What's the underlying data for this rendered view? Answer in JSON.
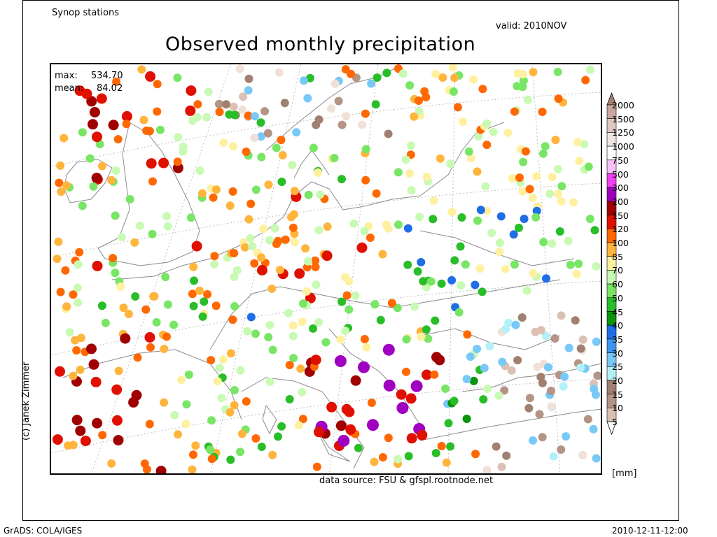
{
  "header": {
    "source_label": "Synop stations",
    "valid_label": "valid: 2010NOV",
    "title": "Observed monthly precipitation"
  },
  "stats": {
    "max_label": "max:",
    "max_value": "534.70",
    "mean_label": "mean:",
    "mean_value": "84.02"
  },
  "credit": "(c) Janek Zimmer",
  "data_source": "data source: FSU & gfspl.rootnode.net",
  "footer": {
    "left": "GrADS: COLA/IGES",
    "right": "2010-12-11-12:00"
  },
  "legend": {
    "unit": "[mm]",
    "levels": [
      {
        "label": "2000",
        "color": "#c8a89c"
      },
      {
        "label": "1500",
        "color": "#e0c8c0"
      },
      {
        "label": "1250",
        "color": "#f2e6e2"
      },
      {
        "label": "1000",
        "color": "#ffffff"
      },
      {
        "label": "750",
        "color": "#f8c0f8"
      },
      {
        "label": "500",
        "color": "#f040f0"
      },
      {
        "label": "300",
        "color": "#a000c0"
      },
      {
        "label": "200",
        "color": "#a00000"
      },
      {
        "label": "150",
        "color": "#e01000"
      },
      {
        "label": "120",
        "color": "#ff6800"
      },
      {
        "label": "100",
        "color": "#ffb43c"
      },
      {
        "label": "85",
        "color": "#fff0a0"
      },
      {
        "label": "70",
        "color": "#c8fab4"
      },
      {
        "label": "60",
        "color": "#78e664"
      },
      {
        "label": "50",
        "color": "#28be28"
      },
      {
        "label": "45",
        "color": "#089608"
      },
      {
        "label": "40",
        "color": "#1e6ee6"
      },
      {
        "label": "35",
        "color": "#3c96f0"
      },
      {
        "label": "30",
        "color": "#78c8f8"
      },
      {
        "label": "25",
        "color": "#b4f0f8"
      },
      {
        "label": "20",
        "color": "#a08070"
      },
      {
        "label": "15",
        "color": "#b49484"
      },
      {
        "label": "10",
        "color": "#dcc0b4"
      },
      {
        "label": "5",
        "color": "#f0e0d8"
      }
    ]
  }
}
